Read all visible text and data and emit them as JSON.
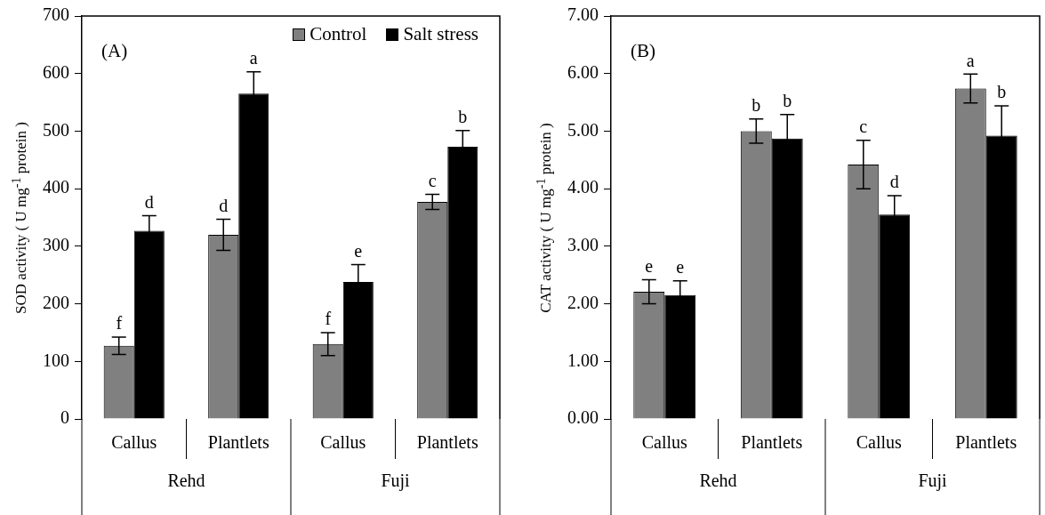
{
  "chart_data": [
    {
      "type": "bar",
      "ylabel": "SOD activity ( U mg$^{-1}$ protein )",
      "categories": [
        "Callus",
        "Plantlets",
        "Callus",
        "Plantlets"
      ],
      "annotations": [
        "(A)",
        "Rehd",
        "Fuji"
      ],
      "ylim": [
        0,
        700
      ],
      "yticks": [
        0,
        100,
        200,
        300,
        400,
        500,
        600,
        700
      ],
      "legend": "top right",
      "series": [
        {
          "name": "Control",
          "color": "#808080",
          "values": [
            127,
            320,
            130,
            377
          ],
          "errors": [
            15,
            27,
            20,
            13
          ],
          "value_labels": [
            "f",
            "d",
            "f",
            "c"
          ]
        },
        {
          "name": "Salt stress",
          "color": "#000000",
          "values": [
            327,
            565,
            238,
            473
          ],
          "errors": [
            26,
            38,
            30,
            28
          ],
          "value_labels": [
            "d",
            "a",
            "e",
            "b"
          ]
        }
      ]
    },
    {
      "type": "bar",
      "ylabel": "CAT activity ( U mg$^{-1}$ protein )",
      "categories": [
        "Callus",
        "Plantlets",
        "Callus",
        "Plantlets"
      ],
      "annotations": [
        "(B)",
        "Rehd",
        "Fuji"
      ],
      "ylim": [
        0,
        7
      ],
      "yticks": [
        {
          "value": 0,
          "label": "0.00"
        },
        {
          "value": 1,
          "label": "1.00"
        },
        {
          "value": 2,
          "label": "2.00"
        },
        {
          "value": 3,
          "label": "3.00"
        },
        {
          "value": 4,
          "label": "4.00"
        },
        {
          "value": 5,
          "label": "5.00"
        },
        {
          "value": 6,
          "label": "6.00"
        },
        {
          "value": 7,
          "label": "7.00"
        }
      ],
      "series": [
        {
          "color": "#808080",
          "values": [
            2.21,
            5.0,
            4.42,
            5.74
          ],
          "errors": [
            0.21,
            0.21,
            0.42,
            0.25
          ],
          "value_labels": [
            "e",
            "b",
            "c",
            "a"
          ]
        },
        {
          "color": "#000000",
          "values": [
            2.15,
            4.87,
            3.55,
            4.92
          ],
          "errors": [
            0.25,
            0.42,
            0.33,
            0.52
          ],
          "value_labels": [
            "e",
            "b",
            "d",
            "b"
          ]
        }
      ]
    }
  ]
}
